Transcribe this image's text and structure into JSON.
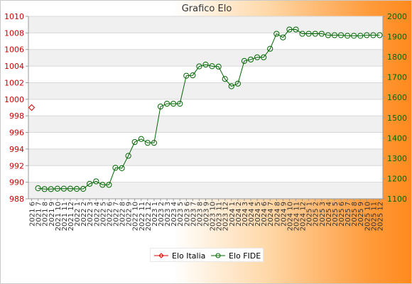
{
  "chart_data": {
    "type": "line",
    "title": "Grafico Elo",
    "x": [
      "2021 6",
      "2021 7",
      "2021 8",
      "2021 9",
      "2021 10",
      "2021 11",
      "2021 12",
      "2022 1",
      "2022 2",
      "2022 3",
      "2022 4",
      "2022 5",
      "2022 6",
      "2022 7",
      "2022 8",
      "2022 9",
      "2022 10",
      "2022 11",
      "2022 12",
      "2023 1",
      "2023 2",
      "2023 3",
      "2023 4",
      "2023 5",
      "2023 6",
      "2023 7",
      "2023 8",
      "2023 9",
      "2023 10",
      "2023 11",
      "2023 12",
      "2024 1",
      "2024 2",
      "2024 3",
      "2024 4",
      "2024 5",
      "2024 6",
      "2024 7",
      "2024 8",
      "2024 9",
      "2024 10",
      "2024 11",
      "2024 12",
      "2025 1",
      "2025 2",
      "2025 3",
      "2025 4",
      "2025 5",
      "2025 6",
      "2025 7",
      "2025 8",
      "2025 9",
      "2025 10",
      "2025 11",
      "2025 12"
    ],
    "y_left": {
      "min": 988,
      "max": 1010,
      "ticks": [
        988,
        990,
        992,
        994,
        996,
        998,
        1000,
        1002,
        1004,
        1006,
        1008,
        1010
      ],
      "color": "#cc0000"
    },
    "y_right": {
      "min": 1100,
      "max": 2000,
      "ticks": [
        1100,
        1200,
        1300,
        1400,
        1500,
        1600,
        1700,
        1800,
        1900,
        2000
      ],
      "color": "#006600"
    },
    "grid": true,
    "legend_position": "bottom-center",
    "series": [
      {
        "name": "Elo Italia",
        "axis": "left",
        "color": "#dd0000",
        "values": [
          999,
          null,
          null,
          null,
          null,
          null,
          null,
          null,
          null,
          null,
          null,
          null,
          null,
          null,
          null,
          null,
          null,
          null,
          null,
          null,
          null,
          null,
          null,
          null,
          null,
          null,
          null,
          null,
          null,
          null,
          null,
          null,
          null,
          null,
          null,
          null,
          null,
          null,
          null,
          null,
          null,
          null,
          null,
          null,
          null,
          null,
          null,
          null,
          null,
          null,
          null,
          null,
          null,
          null,
          null
        ]
      },
      {
        "name": "Elo FIDE",
        "axis": "right",
        "color": "#006600",
        "values": [
          null,
          1152,
          1148,
          1148,
          1150,
          1150,
          1150,
          1149,
          1149,
          1174,
          1186,
          1169,
          1169,
          1253,
          1251,
          1312,
          1380,
          1395,
          1376,
          1376,
          1555,
          1569,
          1569,
          1569,
          1707,
          1709,
          1753,
          1762,
          1754,
          1752,
          1691,
          1655,
          1668,
          1780,
          1787,
          1798,
          1798,
          1840,
          1914,
          1896,
          1935,
          1935,
          1914,
          1914,
          1914,
          1914,
          1907,
          1907,
          1907,
          1904,
          1904,
          1904,
          1907,
          1907,
          1907
        ]
      }
    ]
  },
  "legend": {
    "italia_label": "Elo Italia",
    "fide_label": "Elo FIDE"
  }
}
